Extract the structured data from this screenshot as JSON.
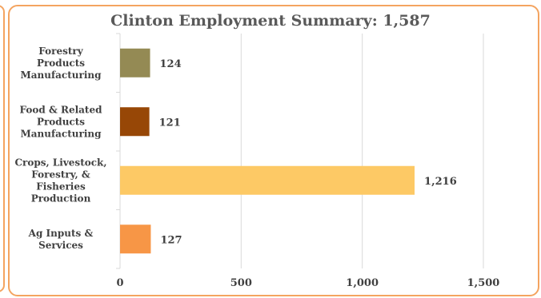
{
  "chart_data": {
    "type": "bar",
    "orientation": "horizontal",
    "title": "Clinton Employment Summary: 1,587",
    "categories": [
      [
        "Forestry",
        "Products",
        "Manufacturing"
      ],
      [
        "Food & Related",
        "Products",
        "Manufacturing"
      ],
      [
        "Crops, Livestock,",
        "Forestry, &",
        "Fisheries",
        "Production"
      ],
      [
        "Ag Inputs &",
        "Services"
      ]
    ],
    "values": [
      124,
      121,
      1216,
      127
    ],
    "value_labels": [
      "124",
      "121",
      "1,216",
      "127"
    ],
    "colors": [
      "#948a54",
      "#974706",
      "#fdc965",
      "#f79646"
    ],
    "xlim": [
      0,
      1500
    ],
    "xticks": [
      0,
      500,
      1000,
      1500
    ],
    "xtick_labels": [
      "0",
      "500",
      "1,000",
      "1,500"
    ],
    "grid": true,
    "legend": "none"
  }
}
